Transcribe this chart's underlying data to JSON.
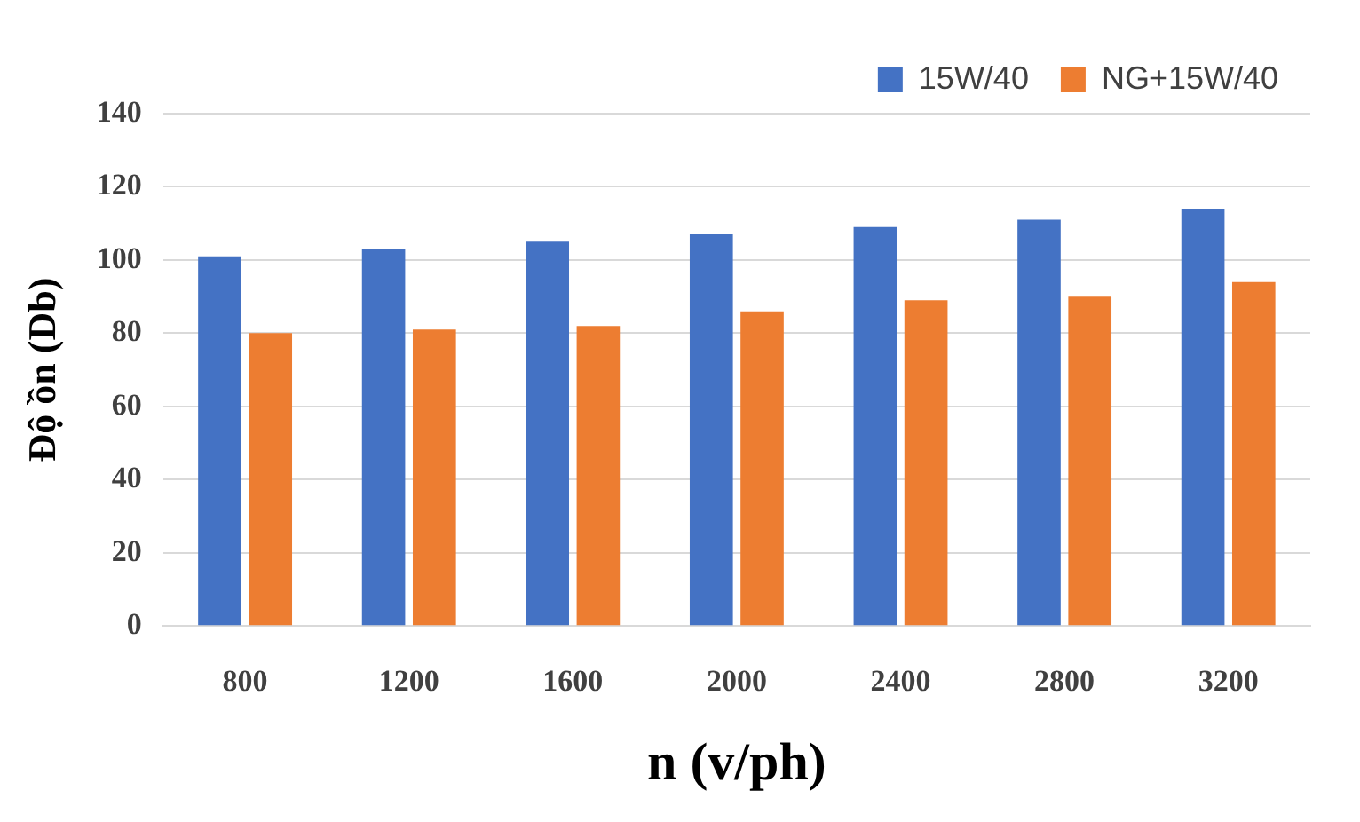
{
  "chart_data": {
    "type": "bar",
    "xlabel": "n (v/ph)",
    "ylabel": "Độ ồn (Db)",
    "categories": [
      "800",
      "1200",
      "1600",
      "2000",
      "2400",
      "2800",
      "3200"
    ],
    "series": [
      {
        "name": "15W/40",
        "color": "#4472c4",
        "values": [
          101,
          103,
          105,
          107,
          109,
          111,
          114
        ]
      },
      {
        "name": "NG+15W/40",
        "color": "#ed7d31",
        "values": [
          80,
          81,
          82,
          86,
          89,
          90,
          94
        ]
      }
    ],
    "ylim": [
      0,
      140
    ],
    "yticks": [
      0,
      20,
      40,
      60,
      80,
      100,
      120,
      140
    ],
    "grid": "y",
    "legend": "top right"
  }
}
